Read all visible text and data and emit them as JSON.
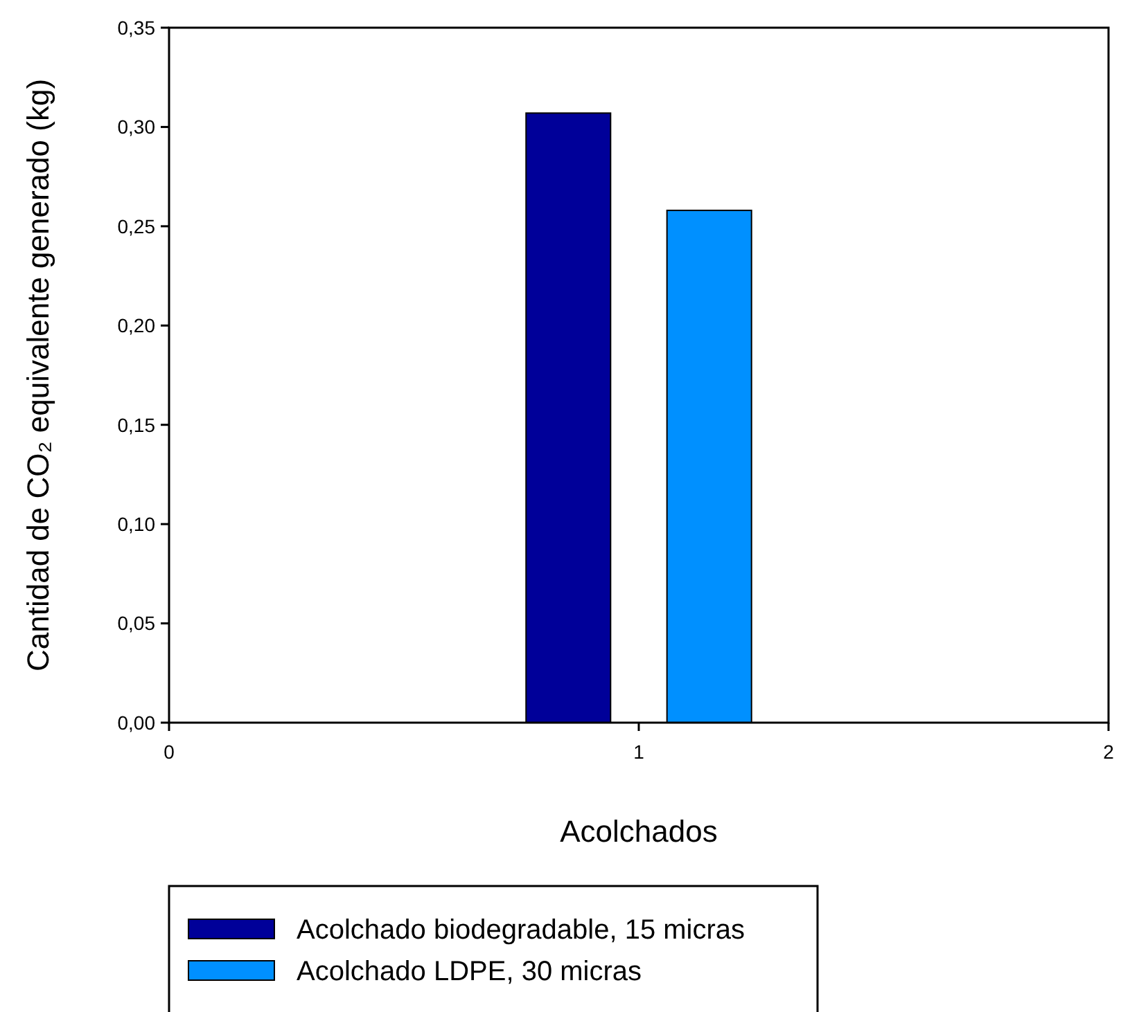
{
  "chart_data": {
    "type": "bar",
    "ylabel": "Cantidad de CO₂ equivalente generado (kg)",
    "xlabel": "Acolchados",
    "series": [
      {
        "name": "Acolchado biodegradable, 15 micras",
        "color": "#000099",
        "x": [
          0.85
        ],
        "values": [
          0.307
        ]
      },
      {
        "name": "Acolchado LDPE, 30 micras",
        "color": "#0090ff",
        "x": [
          1.15
        ],
        "values": [
          0.258
        ]
      }
    ],
    "xlim": [
      0,
      2
    ],
    "xticks": [
      0,
      1,
      2
    ],
    "ylim": [
      0,
      0.35
    ],
    "yticks": [
      {
        "value": 0,
        "label": "0,00"
      },
      {
        "value": 0.05,
        "label": "0,05"
      },
      {
        "value": 0.1,
        "label": "0,10"
      },
      {
        "value": 0.15,
        "label": "0,15"
      },
      {
        "value": 0.2,
        "label": "0,20"
      },
      {
        "value": 0.25,
        "label": "0,25"
      },
      {
        "value": 0.3,
        "label": "0,30"
      },
      {
        "value": 0.35,
        "label": "0,35"
      }
    ],
    "grid": false,
    "legend": "bottom left"
  }
}
